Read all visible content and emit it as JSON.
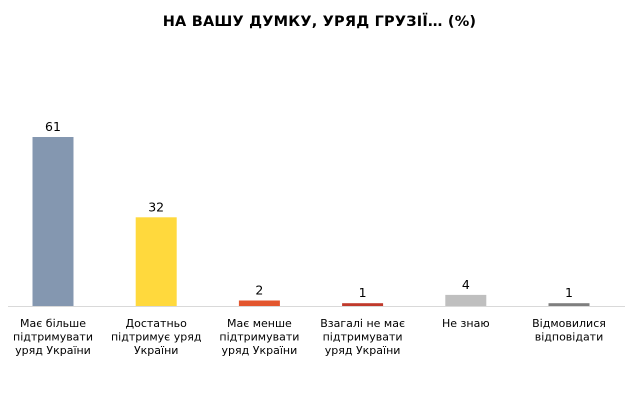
{
  "chart_data": {
    "type": "bar",
    "title": "НА ВАШУ ДУМКУ, УРЯД ГРУЗІЇ… (%)",
    "xlabel": "",
    "ylabel": "",
    "ylim": [
      0,
      70
    ],
    "grid": false,
    "legend": "none",
    "categories": [
      "Має більше підтримувати уряд України",
      "Достатньо підтримує уряд України",
      "Має менше підтримувати уряд України",
      "Взагалі не має підтримувати уряд України",
      "Не знаю",
      "Відмовилися відповідати"
    ],
    "category_lines": [
      [
        "Має більше",
        "підтримувати",
        "уряд України"
      ],
      [
        "Достатньо",
        "підтримує уряд",
        "України"
      ],
      [
        "Має менше",
        "підтримувати",
        "уряд України"
      ],
      [
        "Взагалі не має",
        "підтримувати",
        "уряд України"
      ],
      [
        "Не знаю"
      ],
      [
        "Відмовилися",
        "відповідати"
      ]
    ],
    "values": [
      61,
      32,
      2,
      1,
      4,
      1
    ],
    "data_labels": [
      "61",
      "32",
      "2",
      "1",
      "4",
      "1"
    ],
    "colors": [
      "#8497b0",
      "#ffd93d",
      "#e3562e",
      "#c0392b",
      "#bfbfbf",
      "#7f7f7f"
    ]
  }
}
